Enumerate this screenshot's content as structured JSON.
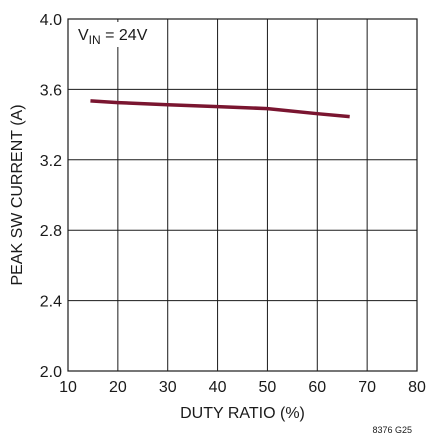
{
  "chart_data": {
    "type": "line",
    "xlabel": "DUTY RATIO (%)",
    "ylabel": "PEAK SW CURRENT (A)",
    "xlim": [
      10,
      80
    ],
    "ylim": [
      2.0,
      4.0
    ],
    "x_ticks": [
      10,
      20,
      30,
      40,
      50,
      60,
      70,
      80
    ],
    "y_ticks": [
      2.0,
      2.4,
      2.8,
      3.2,
      3.6,
      4.0
    ],
    "x_tick_labels": [
      "10",
      "20",
      "30",
      "40",
      "50",
      "60",
      "70",
      "80"
    ],
    "y_tick_labels": [
      "2.0",
      "2.4",
      "2.8",
      "3.2",
      "3.6",
      "4.0"
    ],
    "grid": true,
    "line_color": "#7a1530",
    "annotation": {
      "v": "V",
      "sub": "IN",
      "rest": " = 24V"
    },
    "figure_id": "8376 G25",
    "series": [
      {
        "x": [
          14.5,
          20,
          30,
          40,
          50,
          60,
          66.5
        ],
        "y": [
          3.535,
          3.525,
          3.513,
          3.502,
          3.491,
          3.462,
          3.445
        ]
      }
    ]
  }
}
